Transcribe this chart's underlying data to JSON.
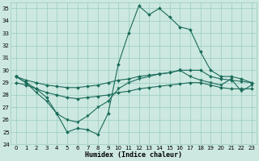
{
  "xlabel": "Humidex (Indice chaleur)",
  "xlim": [
    -0.5,
    23.5
  ],
  "ylim": [
    24,
    35.5
  ],
  "yticks": [
    24,
    25,
    26,
    27,
    28,
    29,
    30,
    31,
    32,
    33,
    34,
    35
  ],
  "xticks": [
    0,
    1,
    2,
    3,
    4,
    5,
    6,
    7,
    8,
    9,
    10,
    11,
    12,
    13,
    14,
    15,
    16,
    17,
    18,
    19,
    20,
    21,
    22,
    23
  ],
  "bg_color": "#cce8e0",
  "grid_color": "#99ccc0",
  "line_color": "#1a6b5a",
  "series": [
    {
      "x": [
        0,
        1,
        2,
        3,
        4,
        5,
        6,
        7,
        8,
        9,
        10,
        11,
        12,
        13,
        14,
        15,
        16,
        17,
        18,
        19,
        20,
        21,
        22,
        23
      ],
      "y": [
        29.5,
        29.2,
        29.0,
        28.8,
        28.7,
        28.6,
        28.6,
        28.7,
        28.8,
        29.0,
        29.2,
        29.3,
        29.5,
        29.6,
        29.7,
        29.8,
        30.0,
        30.0,
        30.0,
        29.5,
        29.3,
        29.2,
        29.1,
        29.0
      ],
      "marker": "D",
      "markersize": 2.0,
      "linewidth": 0.8
    },
    {
      "x": [
        0,
        1,
        2,
        3,
        4,
        5,
        6,
        7,
        8,
        9,
        10,
        11,
        12,
        13,
        14,
        15,
        16,
        17,
        18,
        19,
        20,
        21,
        22,
        23
      ],
      "y": [
        29.0,
        28.8,
        28.5,
        28.2,
        28.0,
        27.8,
        27.7,
        27.8,
        27.9,
        28.0,
        28.2,
        28.3,
        28.5,
        28.6,
        28.7,
        28.8,
        28.9,
        29.0,
        29.0,
        28.8,
        28.6,
        28.5,
        28.5,
        28.5
      ],
      "marker": "D",
      "markersize": 2.0,
      "linewidth": 0.8
    },
    {
      "x": [
        0,
        1,
        2,
        3,
        4,
        5,
        6,
        7,
        8,
        9,
        10,
        11,
        12,
        13,
        14,
        15,
        16,
        17,
        18,
        19,
        20,
        21,
        22,
        23
      ],
      "y": [
        29.5,
        29.0,
        28.5,
        27.8,
        26.5,
        25.0,
        25.3,
        25.2,
        24.8,
        26.5,
        30.5,
        33.0,
        35.2,
        34.5,
        35.0,
        34.3,
        33.5,
        33.3,
        31.5,
        30.0,
        29.5,
        29.5,
        29.3,
        29.0
      ],
      "marker": "D",
      "markersize": 2.0,
      "linewidth": 0.8
    },
    {
      "x": [
        0,
        1,
        2,
        3,
        4,
        5,
        6,
        7,
        8,
        9,
        10,
        11,
        12,
        13,
        14,
        15,
        16,
        17,
        18,
        19,
        20,
        21,
        22,
        23
      ],
      "y": [
        29.5,
        29.0,
        28.2,
        27.5,
        26.5,
        26.0,
        25.8,
        26.3,
        27.0,
        27.5,
        28.5,
        29.0,
        29.3,
        29.5,
        29.7,
        29.8,
        30.0,
        29.5,
        29.2,
        29.0,
        28.8,
        29.3,
        28.3,
        28.8
      ],
      "marker": "v",
      "markersize": 2.5,
      "linewidth": 0.8
    }
  ]
}
